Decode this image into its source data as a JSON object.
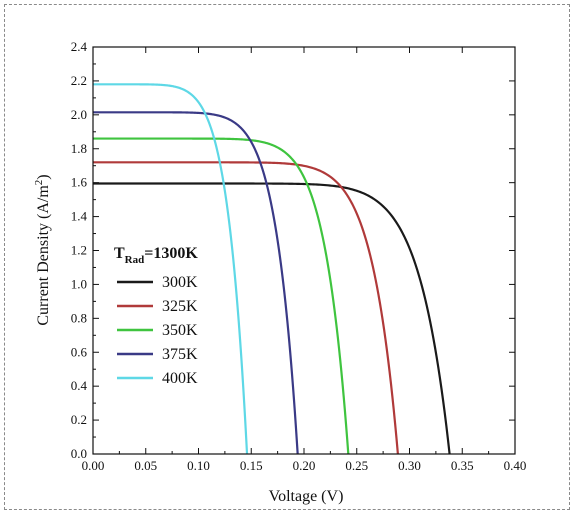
{
  "chart_data": {
    "type": "line",
    "title": "",
    "xlabel": "Voltage (V)",
    "ylabel": "Current Density (A/m",
    "ylabel_superscript": "2",
    "ylabel_suffix": ")",
    "xlim": [
      0,
      0.4
    ],
    "ylim": [
      0,
      2.4
    ],
    "x_ticks": [
      "0.00",
      "0.05",
      "0.10",
      "0.15",
      "0.20",
      "0.25",
      "0.30",
      "0.35",
      "0.40"
    ],
    "y_ticks": [
      "0.0",
      "0.2",
      "0.4",
      "0.6",
      "0.8",
      "1.0",
      "1.2",
      "1.4",
      "1.6",
      "1.8",
      "2.0",
      "2.2",
      "2.4"
    ],
    "grid": false,
    "legend": {
      "placement": "left-middle",
      "title_main": "T",
      "title_sub": "Rad",
      "title_rest": "=1300K"
    },
    "series": [
      {
        "name": "300K",
        "color": "#1a1a1a",
        "jsc": 1.595,
        "voc": 0.338,
        "n": 12,
        "points": [
          [
            0,
            1.595
          ],
          [
            0.1,
            1.595
          ],
          [
            0.2,
            1.595
          ],
          [
            0.25,
            1.585
          ],
          [
            0.28,
            1.55
          ],
          [
            0.3,
            1.42
          ],
          [
            0.31,
            1.28
          ],
          [
            0.32,
            1.0
          ],
          [
            0.33,
            0.58
          ],
          [
            0.338,
            0
          ]
        ]
      },
      {
        "name": "325K",
        "color": "#b03a3a",
        "jsc": 1.72,
        "voc": 0.289,
        "n": 12,
        "points": [
          [
            0,
            1.72
          ],
          [
            0.1,
            1.72
          ],
          [
            0.15,
            1.715
          ],
          [
            0.2,
            1.69
          ],
          [
            0.23,
            1.62
          ],
          [
            0.25,
            1.5
          ],
          [
            0.26,
            1.38
          ],
          [
            0.27,
            1.15
          ],
          [
            0.28,
            0.72
          ],
          [
            0.289,
            0
          ]
        ]
      },
      {
        "name": "350K",
        "color": "#3fc43f",
        "jsc": 1.86,
        "voc": 0.242,
        "n": 11,
        "points": [
          [
            0,
            1.86
          ],
          [
            0.05,
            1.86
          ],
          [
            0.1,
            1.85
          ],
          [
            0.15,
            1.8
          ],
          [
            0.18,
            1.7
          ],
          [
            0.2,
            1.55
          ],
          [
            0.21,
            1.42
          ],
          [
            0.22,
            1.18
          ],
          [
            0.23,
            0.8
          ],
          [
            0.242,
            0
          ]
        ]
      },
      {
        "name": "375K",
        "color": "#3a3a86",
        "jsc": 2.015,
        "voc": 0.194,
        "n": 9.5,
        "points": [
          [
            0,
            2.015
          ],
          [
            0.05,
            2.0
          ],
          [
            0.1,
            1.92
          ],
          [
            0.13,
            1.78
          ],
          [
            0.15,
            1.58
          ],
          [
            0.16,
            1.45
          ],
          [
            0.17,
            1.25
          ],
          [
            0.18,
            0.9
          ],
          [
            0.19,
            0.4
          ],
          [
            0.194,
            0
          ]
        ]
      },
      {
        "name": "400K",
        "color": "#5ed8e6",
        "jsc": 2.18,
        "voc": 0.146,
        "n": 8,
        "points": [
          [
            0,
            2.18
          ],
          [
            0.03,
            2.15
          ],
          [
            0.06,
            2.05
          ],
          [
            0.08,
            1.9
          ],
          [
            0.1,
            1.62
          ],
          [
            0.11,
            1.45
          ],
          [
            0.12,
            1.2
          ],
          [
            0.13,
            0.88
          ],
          [
            0.14,
            0.45
          ],
          [
            0.146,
            0
          ]
        ]
      }
    ]
  }
}
